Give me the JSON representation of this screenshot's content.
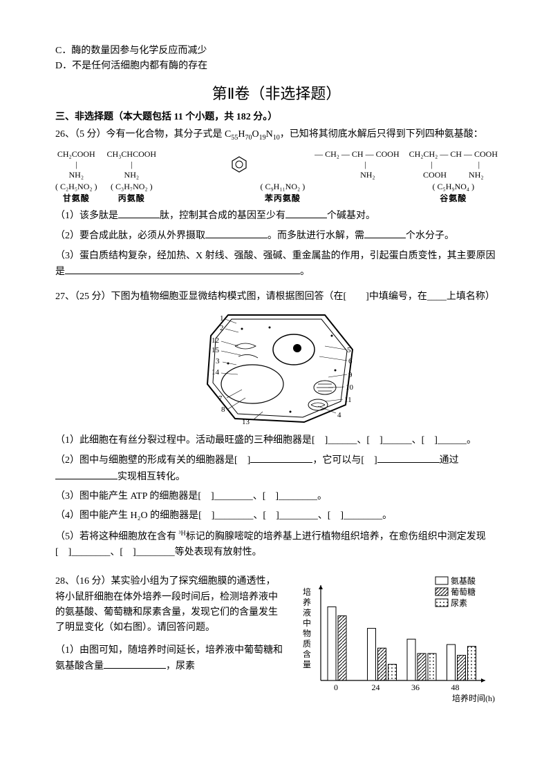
{
  "options": {
    "c": "C．酶的数量因参与化学反应而减少",
    "d": "D．不是任何活细胞内都有酶的存在"
  },
  "section2_title": "第Ⅱ卷（非选择题）",
  "part3_heading": "三、非选择题（本大题包括 11 个小题，共 182 分。）",
  "q26": {
    "stem_a": "26、（5 分）今有一化合物，其分子式是 C",
    "stem_sub1": "55",
    "stem_b": "H",
    "stem_sub2": "70",
    "stem_c": "O",
    "stem_sub3": "19",
    "stem_d": "N",
    "stem_sub4": "10",
    "stem_e": "，已知将其彻底水解后只得到下列四种氨基酸：",
    "aa": [
      {
        "line1": "CH₂COOH",
        "line2": "|",
        "line3": "NH₂",
        "formula": "( C₂H₅NO₂ )",
        "name": "甘氨酸"
      },
      {
        "line1": "CH₃CHCOOH",
        "line2": "|",
        "line3": "NH₂",
        "formula": "( C₃H₇NO₂ )",
        "name": "丙氨酸"
      },
      {
        "benzene": true,
        "line1": "— CH₂ — CH — COOH",
        "line2": "|",
        "line3": "NH₂",
        "formula": "( C₉H₁₁NO₂ )",
        "name": "苯丙氨酸"
      },
      {
        "line1": "CH₂CH₂ — CH — COOH",
        "line2a": "|",
        "line2b": "|",
        "line3a": "COOH",
        "line3b": "NH₂",
        "formula": "( C₅H₉NO₄ )",
        "name": "谷氨酸"
      }
    ],
    "p1a": "（1）该多肽是",
    "p1b": "肽，控制其合成的基因至少有",
    "p1c": "个碱基对。",
    "p2a": "（2）要合成此肽，必须从外界摄取",
    "p2b": "。而多肽进行水解，需",
    "p2c": "个水分子。",
    "p3a": "（3）蛋白质结构复杂，经加热、X 射线、强酸、强碱、重金属盐的作用，引起蛋白质变性，其主要原因是",
    "p3b": "。"
  },
  "q27": {
    "stem": "27、（25 分）下图为植物细胞亚显微结构模式图，请根据图回答（在[　　]中填编号，在____上填名称）",
    "labels": [
      "1",
      "2",
      "12",
      "15",
      "3",
      "14",
      "13",
      "7",
      "8",
      "5",
      "6",
      "9",
      "10",
      "11",
      "4"
    ],
    "p1": "（1）此细胞在有丝分裂过程中。活动最旺盛的三种细胞器是[　]______、[　]______、[　]______。",
    "p2a": "（2）图中与细胞壁的形成有关的细胞器是[　]",
    "p2b": "，它可以与[　]",
    "p2c": "通过",
    "p2d": "实现相互转化。",
    "p3": "（3）图中能产生 ATP 的细胞器是[　]________、[　]________。",
    "p4": "（4）图中能产生 H₂O 的细胞器是[　]________、[　]________、[　]________。",
    "p5a": "（5）若将这种细胞放在含有 ",
    "p5h": "³H",
    " p5b": "标记的胸腺嘧啶的培养基上进行植物组织培养，在愈伤组织中测定发现[　]________、[　]________等处表现有放射性。"
  },
  "q28": {
    "stem": "28、（16 分）某实验小组为了探究细胞膜的通透性，将小鼠肝细胞在体外培养一段时间后，检测培养液中的氨基酸、葡萄糖和尿素含量，发现它们的含量发生了明显变化（如右图）。请回答问题。",
    "p1a": "（1）由图可知，随培养时间延长，培养液中葡萄糖和氨基酸含量",
    "p1b": "，尿素",
    "chart": {
      "ylabel": "培养液中物质含量",
      "xlabel": "培养时间(h)",
      "xticks": [
        "0",
        "24",
        "36",
        "48"
      ],
      "legend": [
        "氨基酸",
        "葡萄糖",
        "尿素"
      ],
      "series": {
        "amino": [
          82,
          58,
          46,
          40
        ],
        "glucose": [
          72,
          36,
          30,
          28
        ],
        "urea": [
          0,
          18,
          30,
          38
        ]
      },
      "colors": {
        "bar_border": "#000",
        "bg": "#fff",
        "axis": "#000"
      }
    }
  }
}
